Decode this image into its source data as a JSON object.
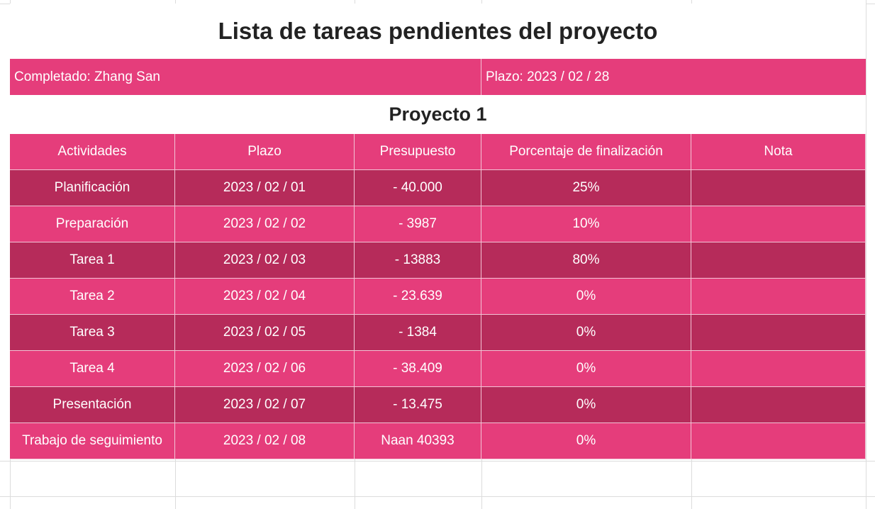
{
  "title": "Lista de tareas pendientes del proyecto",
  "info": {
    "completed_by": "Completado: Zhang San",
    "deadline": "Plazo: 2023 / 02 / 28"
  },
  "project_name": "Proyecto 1",
  "table": {
    "headers": [
      "Actividades",
      "Plazo",
      "Presupuesto",
      "Porcentaje de finalización",
      "Nota"
    ],
    "rows": [
      [
        "Planificación",
        "2023 / 02 / 01",
        "- 40.000",
        "25%",
        ""
      ],
      [
        "Preparación",
        "2023 / 02 / 02",
        "- 3987",
        "10%",
        ""
      ],
      [
        "Tarea 1",
        "2023 / 02 / 03",
        "- 13883",
        "80%",
        ""
      ],
      [
        "Tarea 2",
        "2023 / 02 / 04",
        "- 23.639",
        "0%",
        ""
      ],
      [
        "Tarea 3",
        "2023 / 02 / 05",
        "- 1384",
        "0%",
        ""
      ],
      [
        "Tarea 4",
        "2023 / 02 / 06",
        "- 38.409",
        "0%",
        ""
      ],
      [
        "Presentación",
        "2023 / 02 / 07",
        "- 13.475",
        "0%",
        ""
      ],
      [
        "Trabajo de seguimiento",
        "2023 / 02 / 08",
        "Naan 40393",
        "0%",
        ""
      ]
    ]
  },
  "colors": {
    "header_row": "#e53d7b",
    "row_dark": "#b62b5a",
    "row_light": "#e53d7b",
    "text_on_color": "#ffffff",
    "title_text": "#222222"
  }
}
